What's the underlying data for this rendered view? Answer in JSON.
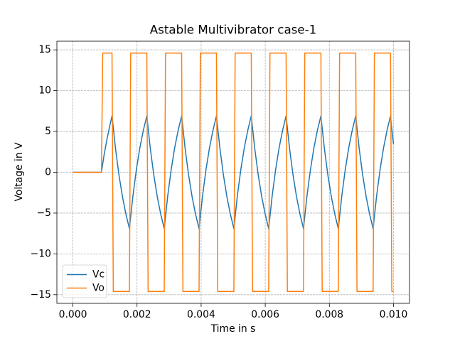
{
  "chart_data": {
    "type": "line",
    "title": "Astable Multivibrator case-1",
    "x_label": "Time in s",
    "y_label": "Voltage in V",
    "xlim": [
      -0.0005,
      0.0105
    ],
    "ylim": [
      -16.06,
      16.06
    ],
    "xticks": [
      {
        "value": 0,
        "label": "0.000"
      },
      0.002,
      0.004,
      0.006,
      0.008,
      {
        "value": 0.01,
        "label": "0.010"
      }
    ],
    "yticks": [
      {
        "value": -15,
        "label": "−15"
      },
      {
        "value": -10,
        "label": "−10"
      },
      {
        "value": -5,
        "label": "−5"
      },
      0,
      5,
      10,
      15
    ],
    "grid": true,
    "legend": "lower left",
    "series": [
      {
        "name": "Vc",
        "color": "#1f77b4",
        "x": [
          0,
          0.00089,
          0.0009725,
          0.001055,
          0.0011375,
          0.00122,
          0.0013286,
          0.0014372,
          0.0015458,
          0.0016544,
          0.001763,
          0.0018716,
          0.0019802,
          0.0020888,
          0.0021974,
          0.002306,
          0.0024146,
          0.0025232,
          0.0026318,
          0.0027404,
          0.002849,
          0.0029576,
          0.0030662,
          0.0031748,
          0.0032834,
          0.003392,
          0.0035006,
          0.0036092,
          0.0037178,
          0.0038264,
          0.003935,
          0.0040436,
          0.0041522,
          0.0042608,
          0.0043694,
          0.004478,
          0.0045866,
          0.0046952,
          0.0048038,
          0.0049124,
          0.005021,
          0.0051296,
          0.0052382,
          0.0053468,
          0.0054554,
          0.005564,
          0.0056726,
          0.0057812,
          0.0058898,
          0.0059984,
          0.006107,
          0.0062156,
          0.0063242,
          0.0064328,
          0.0065414,
          0.00665,
          0.0067586,
          0.0068672,
          0.0069758,
          0.0070844,
          0.007193,
          0.0073016,
          0.0074102,
          0.0075188,
          0.0076274,
          0.007736,
          0.0078446,
          0.0079532,
          0.0080618,
          0.0081704,
          0.008279,
          0.0083876,
          0.0084962,
          0.0086048,
          0.0087134,
          0.008822,
          0.0089306,
          0.0090392,
          0.0091478,
          0.0092564,
          0.009365,
          0.0094736,
          0.0095822,
          0.0096908,
          0.0097994,
          0.009908,
          0.009954,
          0.01
        ],
        "values": [
          0,
          0,
          2.11,
          3.91,
          5.46,
          6.9,
          2.91,
          -0.34,
          -2.99,
          -5.14,
          -6.9,
          -2.91,
          0.34,
          2.99,
          5.14,
          6.9,
          2.91,
          -0.34,
          -2.99,
          -5.14,
          -6.9,
          -2.91,
          0.34,
          2.99,
          5.14,
          6.9,
          2.91,
          -0.34,
          -2.99,
          -5.14,
          -6.9,
          -2.91,
          0.34,
          2.99,
          5.14,
          6.9,
          2.91,
          -0.34,
          -2.99,
          -5.14,
          -6.9,
          -2.91,
          0.34,
          2.99,
          5.14,
          6.9,
          2.91,
          -0.34,
          -2.99,
          -5.14,
          -6.9,
          -2.91,
          0.34,
          2.99,
          5.14,
          6.9,
          2.91,
          -0.34,
          -2.99,
          -5.14,
          -6.9,
          -2.91,
          0.34,
          2.99,
          5.14,
          6.9,
          2.91,
          -0.34,
          -2.99,
          -5.14,
          -6.9,
          -2.91,
          0.34,
          2.99,
          5.14,
          6.9,
          2.91,
          -0.34,
          -2.99,
          -5.14,
          -6.9,
          -2.91,
          0.34,
          2.99,
          5.14,
          6.9,
          5.11,
          3.46
        ]
      },
      {
        "name": "Vo",
        "color": "#ff7f0e",
        "x": [
          0,
          0.00089,
          0.00093,
          0.00122,
          0.00126,
          0.001763,
          0.001803,
          0.002306,
          0.002346,
          0.002849,
          0.002889,
          0.003392,
          0.003432,
          0.003935,
          0.003975,
          0.004478,
          0.004518,
          0.005021,
          0.005061,
          0.005564,
          0.005604,
          0.006107,
          0.006147,
          0.00665,
          0.00669,
          0.007193,
          0.007233,
          0.007736,
          0.007776,
          0.008279,
          0.008319,
          0.008822,
          0.008862,
          0.009365,
          0.009405,
          0.009908,
          0.009948,
          0.01
        ],
        "values": [
          0,
          0,
          14.6,
          14.6,
          -14.6,
          -14.6,
          14.6,
          14.6,
          -14.6,
          -14.6,
          14.6,
          14.6,
          -14.6,
          -14.6,
          14.6,
          14.6,
          -14.6,
          -14.6,
          14.6,
          14.6,
          -14.6,
          -14.6,
          14.6,
          14.6,
          -14.6,
          -14.6,
          14.6,
          14.6,
          -14.6,
          -14.6,
          14.6,
          14.6,
          -14.6,
          -14.6,
          14.6,
          14.6,
          -14.6,
          -14.6
        ]
      }
    ]
  }
}
